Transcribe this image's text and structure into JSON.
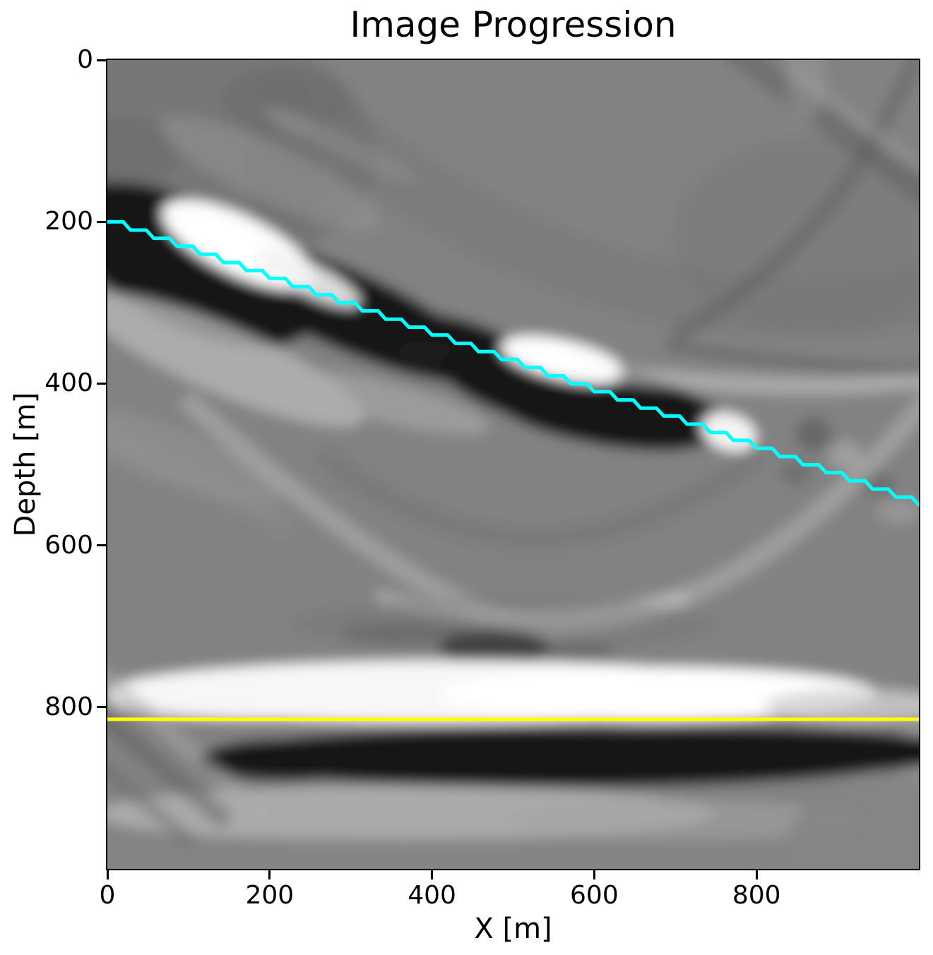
{
  "figure": {
    "title": "Image Progression",
    "xlabel": "X [m]",
    "ylabel": "Depth [m]"
  },
  "chart_data": {
    "type": "heatmap",
    "subtype": "grayscale seismic depth image (imshow)",
    "title": "Image Progression",
    "xlabel": "X [m]",
    "ylabel": "Depth [m]",
    "colormap": "gray",
    "x_range": [
      0,
      1000
    ],
    "y_range": [
      0,
      1000
    ],
    "y_inverted": true,
    "x_ticks": [
      0,
      200,
      400,
      600,
      800
    ],
    "y_ticks": [
      0,
      200,
      400,
      600,
      800
    ],
    "grid": false,
    "legend": "none",
    "overlays": [
      {
        "name": "picked-horizon-line",
        "type": "stair-line",
        "color": "#00FFFF",
        "linewidth": 5,
        "points_x_depth": [
          [
            0,
            200
          ],
          [
            50,
            218
          ],
          [
            100,
            235
          ],
          [
            150,
            253
          ],
          [
            200,
            270
          ],
          [
            250,
            288
          ],
          [
            300,
            305
          ],
          [
            350,
            323
          ],
          [
            400,
            340
          ],
          [
            450,
            358
          ],
          [
            500,
            375
          ],
          [
            550,
            393
          ],
          [
            600,
            410
          ],
          [
            650,
            428
          ],
          [
            700,
            445
          ],
          [
            750,
            463
          ],
          [
            800,
            480
          ],
          [
            850,
            498
          ],
          [
            900,
            515
          ],
          [
            950,
            533
          ],
          [
            1000,
            550
          ]
        ]
      },
      {
        "name": "flat-reflector-line",
        "type": "hline",
        "color": "#FFFF00",
        "linewidth": 5,
        "depth": 815
      }
    ],
    "features": [
      {
        "name": "dipping-reflector-upper",
        "polarity": "black",
        "from_x_depth": [
          0,
          180
        ],
        "to_x_depth": [
          477,
          362
        ]
      },
      {
        "name": "bright-spot-upper",
        "polarity": "white",
        "center_x_depth": [
          157,
          229
        ]
      },
      {
        "name": "dipping-reflector-lower",
        "polarity": "black",
        "from_x_depth": [
          416,
          366
        ],
        "to_x_depth": [
          764,
          464
        ]
      },
      {
        "name": "bright-spot-lower",
        "polarity": "white",
        "center_x_depth": [
          564,
          371
        ]
      },
      {
        "name": "bright-spot-small",
        "polarity": "white",
        "center_x_depth": [
          764,
          458
        ]
      },
      {
        "name": "flat-bright-reflector",
        "polarity": "white",
        "depth": 777,
        "x_extent": [
          0,
          1000
        ]
      },
      {
        "name": "flat-dark-reflector",
        "polarity": "black",
        "depth": 855,
        "x_extent": [
          120,
          973
        ]
      },
      {
        "name": "migration-smile-artifacts",
        "polarity": "mixed",
        "region": "center and upper-right"
      }
    ]
  }
}
